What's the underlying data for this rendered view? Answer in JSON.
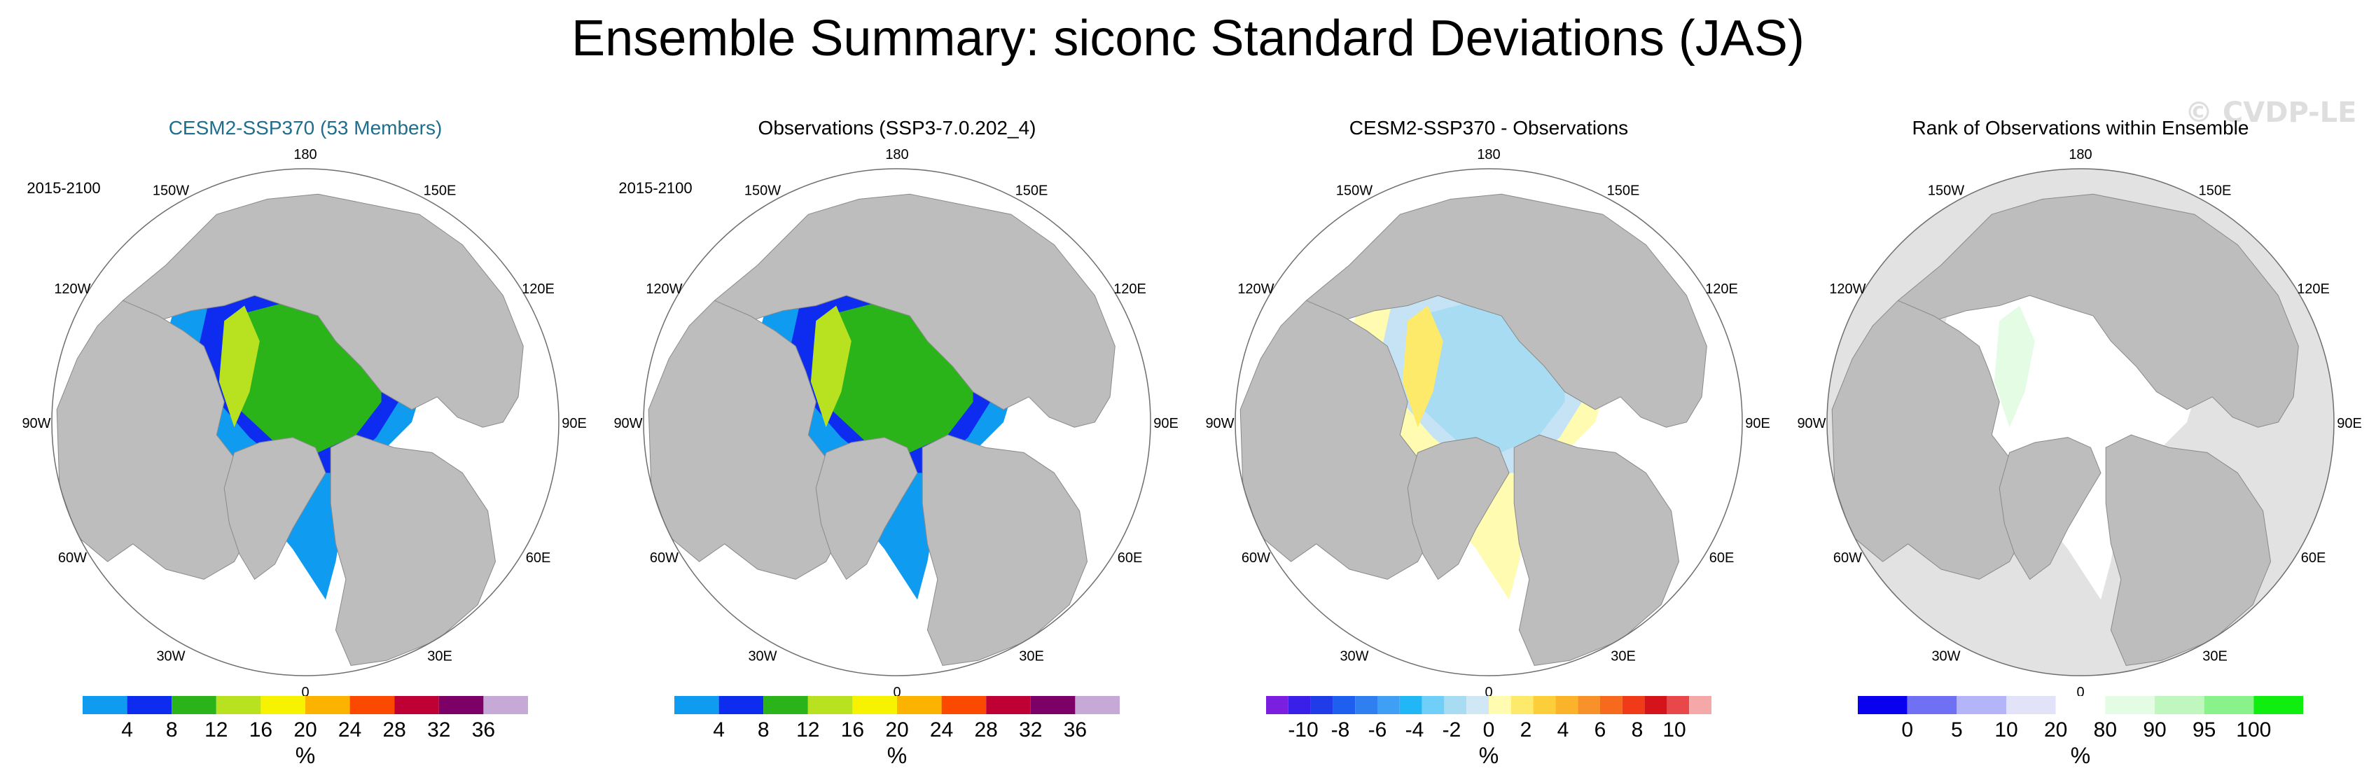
{
  "title": "Ensemble Summary: siconc Standard Deviations (JAS)",
  "watermark": "© CVDP-LE",
  "colors": {
    "land": "#bdbdbd",
    "ocean": "#ffffff",
    "title_blue": "#1f6e8c",
    "map_outline": "#6e6e6e"
  },
  "chart_data": [
    {
      "type": "heatmap",
      "projection": "north-polar-stereographic",
      "title": "CESM2-SSP370 (53 Members)",
      "title_color": "#1f6e8c",
      "period": "2015-2100",
      "longitude_labels": [
        "180",
        "150E",
        "120E",
        "90E",
        "60E",
        "30E",
        "0",
        "30W",
        "60W",
        "90W",
        "120W",
        "150W"
      ],
      "colorbar": {
        "unit": "%",
        "colors": [
          "#0f9bf0",
          "#0d2cf0",
          "#2ab41a",
          "#b8e11f",
          "#f7f300",
          "#fbb300",
          "#fb4a00",
          "#bf0034",
          "#7d0066",
          "#c6a9d6"
        ],
        "tick_labels": [
          "4",
          "8",
          "12",
          "16",
          "20",
          "24",
          "28",
          "32",
          "36"
        ]
      },
      "field_legend": {
        "ice_edge": "#0f9bf0",
        "shelf": "#0d2cf0",
        "interior": "#2ab41a",
        "margin": "#b8e11f",
        "edge_high": "#f7f300"
      }
    },
    {
      "type": "heatmap",
      "projection": "north-polar-stereographic",
      "title": "Observations (SSP3-7.0.202_4)",
      "title_color": "#000000",
      "period": "2015-2100",
      "longitude_labels": [
        "180",
        "150E",
        "120E",
        "90E",
        "60E",
        "30E",
        "0",
        "30W",
        "60W",
        "90W",
        "120W",
        "150W"
      ],
      "colorbar": {
        "unit": "%",
        "colors": [
          "#0f9bf0",
          "#0d2cf0",
          "#2ab41a",
          "#b8e11f",
          "#f7f300",
          "#fbb300",
          "#fb4a00",
          "#bf0034",
          "#7d0066",
          "#c6a9d6"
        ],
        "tick_labels": [
          "4",
          "8",
          "12",
          "16",
          "20",
          "24",
          "28",
          "32",
          "36"
        ]
      },
      "field_legend": {
        "ice_edge": "#0f9bf0",
        "shelf": "#0d2cf0",
        "interior": "#2ab41a",
        "margin": "#b8e11f",
        "edge_high": "#f7f300"
      }
    },
    {
      "type": "heatmap",
      "projection": "north-polar-stereographic",
      "title": "CESM2-SSP370 - Observations",
      "title_color": "#000000",
      "period": "",
      "longitude_labels": [
        "180",
        "150E",
        "120E",
        "90E",
        "60E",
        "30E",
        "0",
        "30W",
        "60W",
        "90W",
        "120W",
        "150W"
      ],
      "colorbar": {
        "unit": "%",
        "colors": [
          "#7a1fe0",
          "#3a1fe8",
          "#1f3ce8",
          "#1f5ff0",
          "#2f7ff0",
          "#3f9ff5",
          "#21b6f5",
          "#6fcff8",
          "#a7dcf2",
          "#d0e8f5",
          "#fffbb0",
          "#fde96a",
          "#fccf3a",
          "#fbb32a",
          "#f9912a",
          "#f76a1e",
          "#f03a18",
          "#d4141a",
          "#e8484a",
          "#f5a8a8"
        ],
        "tick_labels": [
          "-10",
          "-8",
          "-6",
          "-4",
          "-2",
          "0",
          "2",
          "4",
          "6",
          "8",
          "10"
        ]
      },
      "field_legend": {
        "ice_edge": "#fffbb0",
        "shelf": "#c6e3f5",
        "interior": "#a7dcf2",
        "margin": "#fde96a",
        "edge_high": "#fbb32a"
      }
    },
    {
      "type": "heatmap",
      "projection": "north-polar-stereographic",
      "title": "Rank of Observations within Ensemble",
      "title_color": "#000000",
      "period": "",
      "longitude_labels": [
        "180",
        "150E",
        "120E",
        "90E",
        "60E",
        "30E",
        "0",
        "30W",
        "60W",
        "90W",
        "120W",
        "150W"
      ],
      "colorbar": {
        "unit": "%",
        "colors": [
          "#0a00f0",
          "#7070f5",
          "#b4b4f8",
          "#e2e2f8",
          "#ffffff",
          "#e4fbe4",
          "#bff7bf",
          "#8af28a",
          "#10ee10"
        ],
        "tick_labels": [
          "0",
          "5",
          "10",
          "20",
          "80",
          "90",
          "95",
          "100"
        ]
      },
      "field_legend": {
        "ice_edge": "#ffffff",
        "shelf": "#ffffff",
        "interior": "#ffffff",
        "margin": "#e4fbe4",
        "edge_high": "#10ee10"
      }
    }
  ]
}
